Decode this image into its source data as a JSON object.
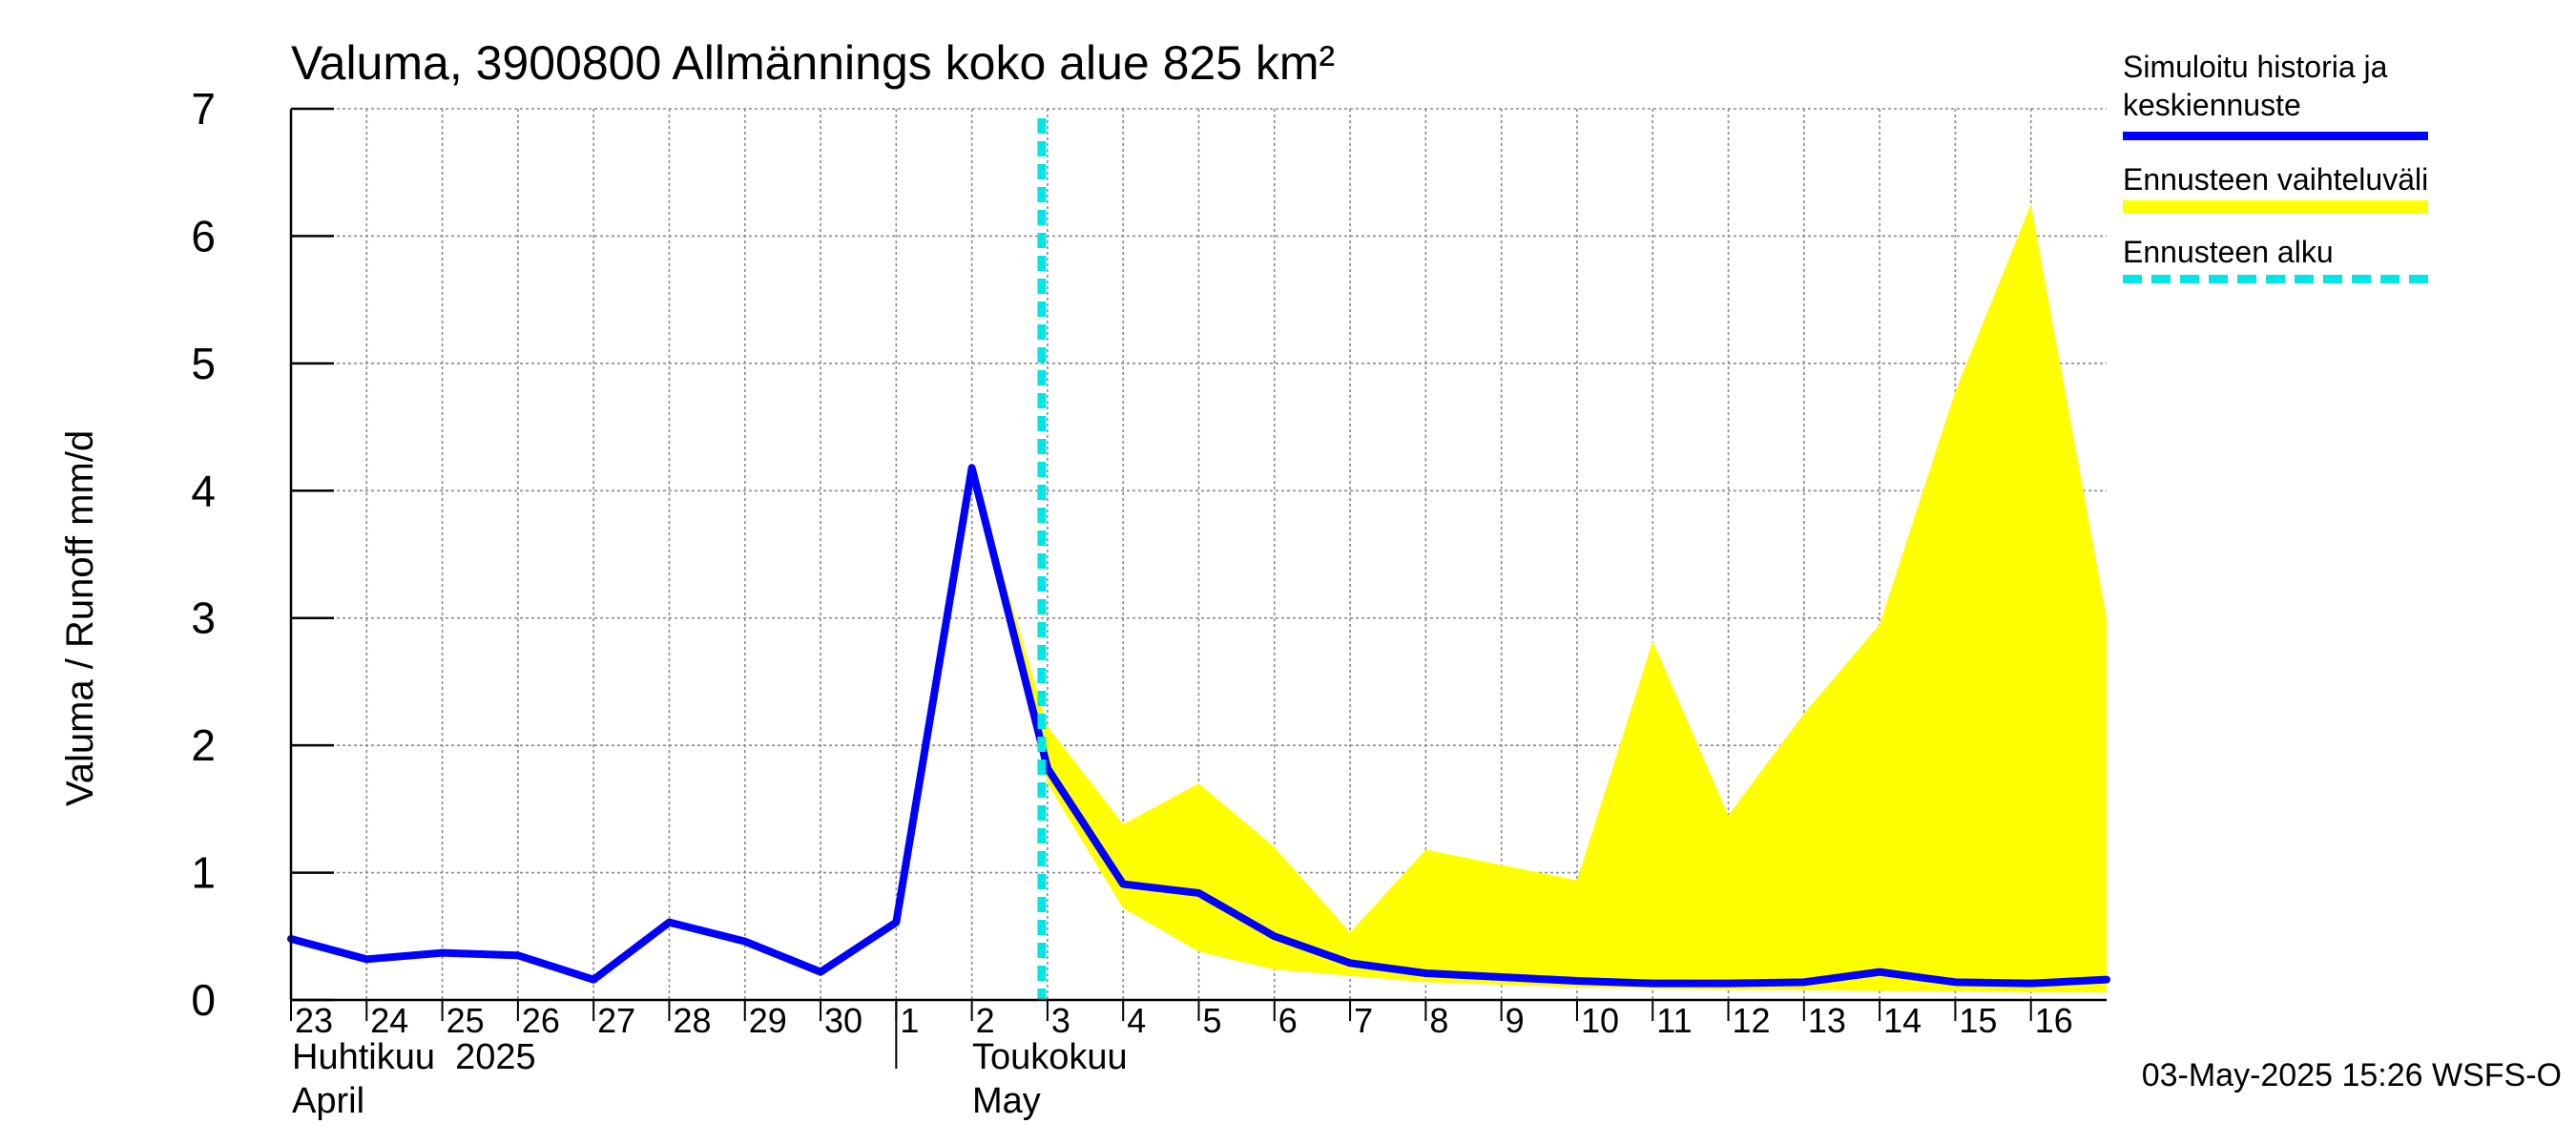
{
  "title": "Valuma, 3900800 Allmännings koko alue 825 km²",
  "ylabel": "Valuma / Runoff    mm/d",
  "footer": "03-May-2025 15:26 WSFS-O",
  "month_labels": {
    "april_fi": "Huhtikuu  2025",
    "april_en": "April",
    "may_fi": "Toukokuu",
    "may_en": "May"
  },
  "legend": [
    {
      "label": "Simuloitu historia ja keskiennuste",
      "color": "#0000ff",
      "style": "solid"
    },
    {
      "label": "Ennusteen vaihteluväli",
      "color": "#ffff00",
      "style": "band"
    },
    {
      "label": "Ennusteen alku",
      "color": "#00e5e5",
      "style": "dashed"
    }
  ],
  "chart_data": {
    "type": "line",
    "title": "Valuma, 3900800 Allmännings koko alue 825 km²",
    "ylabel": "Valuma / Runoff    mm/d",
    "xlabel": "",
    "ylim": [
      0,
      7
    ],
    "yticks": [
      0,
      1,
      2,
      3,
      4,
      5,
      6,
      7
    ],
    "grid": true,
    "legend_position": "right",
    "x_tick_labels": [
      "23",
      "24",
      "25",
      "26",
      "27",
      "28",
      "29",
      "30",
      "1",
      "2",
      "3",
      "4",
      "5",
      "6",
      "7",
      "8",
      "9",
      "10",
      "11",
      "12",
      "13",
      "14",
      "15",
      "16"
    ],
    "x_dates": [
      "2025-04-23",
      "2025-04-24",
      "2025-04-25",
      "2025-04-26",
      "2025-04-27",
      "2025-04-28",
      "2025-04-29",
      "2025-04-30",
      "2025-05-01",
      "2025-05-02",
      "2025-05-03",
      "2025-05-04",
      "2025-05-05",
      "2025-05-06",
      "2025-05-07",
      "2025-05-08",
      "2025-05-09",
      "2025-05-10",
      "2025-05-11",
      "2025-05-12",
      "2025-05-13",
      "2025-05-14",
      "2025-05-15",
      "2025-05-16",
      "2025-05-17"
    ],
    "forecast_start": "2025-05-03",
    "series": [
      {
        "name": "Simuloitu historia ja keskiennuste",
        "color": "#0000ff",
        "values": [
          0.48,
          0.32,
          0.37,
          0.35,
          0.16,
          0.61,
          0.46,
          0.22,
          0.61,
          4.18,
          1.82,
          0.91,
          0.84,
          0.5,
          0.29,
          0.21,
          0.18,
          0.15,
          0.13,
          0.13,
          0.14,
          0.22,
          0.14,
          0.13,
          0.16
        ]
      },
      {
        "name": "Ennusteen vaihteluväli",
        "color": "#ffff00",
        "type": "band",
        "x": [
          "2025-05-02",
          "2025-05-03",
          "2025-05-04",
          "2025-05-05",
          "2025-05-06",
          "2025-05-07",
          "2025-05-08",
          "2025-05-09",
          "2025-05-10",
          "2025-05-11",
          "2025-05-12",
          "2025-05-13",
          "2025-05-14",
          "2025-05-15",
          "2025-05-16",
          "2025-05-17"
        ],
        "upper": [
          4.18,
          2.15,
          1.38,
          1.7,
          1.2,
          0.53,
          1.18,
          1.06,
          0.94,
          2.82,
          1.45,
          2.25,
          2.95,
          4.78,
          6.25,
          3.0
        ],
        "lower": [
          4.18,
          1.7,
          0.72,
          0.38,
          0.24,
          0.19,
          0.14,
          0.12,
          0.1,
          0.09,
          0.08,
          0.08,
          0.07,
          0.07,
          0.06,
          0.06
        ]
      }
    ]
  }
}
